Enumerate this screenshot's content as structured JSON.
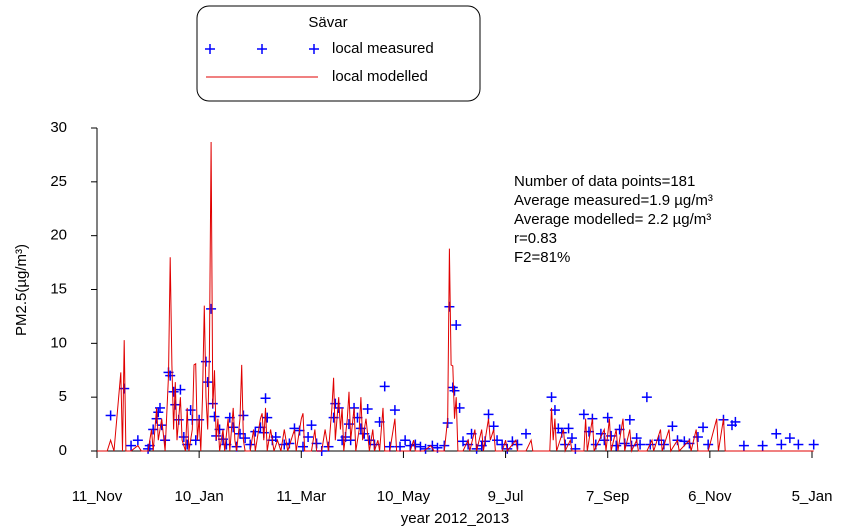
{
  "chart_data": {
    "type": "line",
    "legend_title": "Sävar",
    "x_label": "year 2012_2013",
    "y_label": "PM2.5(µg/m³)",
    "annotations": [
      "Number of data points=181",
      "Average measured=1.9 µg/m³",
      "Average modelled= 2.2 µg/m³",
      "r=0.83",
      "F2=81%"
    ],
    "xlim": [
      0,
      420
    ],
    "xticks": [
      {
        "value": 0,
        "label": "11_Nov"
      },
      {
        "value": 60,
        "label": "10_Jan"
      },
      {
        "value": 120,
        "label": "11_Mar"
      },
      {
        "value": 180,
        "label": "10_May"
      },
      {
        "value": 240,
        "label": "9_Jul"
      },
      {
        "value": 300,
        "label": "7_Sep"
      },
      {
        "value": 360,
        "label": "6_Nov"
      },
      {
        "value": 420,
        "label": "5_Jan"
      }
    ],
    "ylim": [
      0,
      30
    ],
    "yticks": [
      0,
      5,
      10,
      15,
      20,
      25,
      30
    ],
    "series": [
      {
        "name": "local measured",
        "color": "#0000ff",
        "marker": "+",
        "x": [
          8,
          16,
          20,
          24,
          30,
          31,
          33,
          35,
          36,
          37,
          38,
          40,
          42,
          43,
          45,
          46,
          48,
          49,
          51,
          53,
          55,
          56,
          58,
          60,
          64,
          65,
          67,
          68,
          69,
          70,
          72,
          74,
          76,
          78,
          80,
          82,
          84,
          86,
          87,
          90,
          93,
          96,
          98,
          99,
          100,
          103,
          105,
          110,
          113,
          116,
          119,
          121,
          124,
          126,
          129,
          132,
          136,
          139,
          140,
          142,
          144,
          146,
          148,
          149,
          151,
          153,
          155,
          157,
          159,
          160,
          163,
          166,
          169,
          172,
          175,
          178,
          181,
          184,
          187,
          190,
          193,
          197,
          200,
          204,
          206,
          207,
          209,
          210,
          211,
          213,
          215,
          218,
          220,
          223,
          226,
          228,
          230,
          233,
          235,
          238,
          241,
          244,
          247,
          252,
          267,
          269,
          271,
          273,
          275,
          277,
          279,
          281,
          286,
          289,
          291,
          293,
          296,
          298,
          300,
          302,
          305,
          307,
          310,
          313,
          314,
          317,
          319,
          323,
          325,
          330,
          333,
          338,
          341,
          345,
          348,
          353,
          356,
          359,
          368,
          373,
          375,
          380,
          391,
          399,
          402,
          407,
          412,
          421
        ],
        "values": [
          3.3,
          5.8,
          0.5,
          1.0,
          0.2,
          0.5,
          2.0,
          3.0,
          3.6,
          4.0,
          2.4,
          1.0,
          7.3,
          7.0,
          5.5,
          4.3,
          2.9,
          5.7,
          1.3,
          0.6,
          3.8,
          2.9,
          1.0,
          2.9,
          8.3,
          6.4,
          13.2,
          4.4,
          3.2,
          1.4,
          2.0,
          1.1,
          0.6,
          3.1,
          2.2,
          0.4,
          1.6,
          3.3,
          1.2,
          0.6,
          1.8,
          2.2,
          1.7,
          4.9,
          3.1,
          1.0,
          1.3,
          0.6,
          0.7,
          2.1,
          1.9,
          0.4,
          1.3,
          2.4,
          0.7,
          0.0,
          0.4,
          3.1,
          4.4,
          4.0,
          1.0,
          1.3,
          2.5,
          1.0,
          4.0,
          3.1,
          2.1,
          1.6,
          3.9,
          1.0,
          0.6,
          2.7,
          6.0,
          0.4,
          3.8,
          0.4,
          1.0,
          0.5,
          0.6,
          0.4,
          0.2,
          0.5,
          0.3,
          0.5,
          2.6,
          13.4,
          5.9,
          5.6,
          11.7,
          4.0,
          0.9,
          0.6,
          1.6,
          0.2,
          0.5,
          0.9,
          3.4,
          2.3,
          1.0,
          0.6,
          0.2,
          0.9,
          0.6,
          1.6,
          5.0,
          3.8,
          2.1,
          1.7,
          0.6,
          2.1,
          1.2,
          0.2,
          3.4,
          1.8,
          3.0,
          0.6,
          1.6,
          1.0,
          3.1,
          1.4,
          0.5,
          2.0,
          0.7,
          2.9,
          0.5,
          1.2,
          0.6,
          5.0,
          0.6,
          1.0,
          0.6,
          2.3,
          1.0,
          0.9,
          0.7,
          1.3,
          2.2,
          0.6,
          2.9,
          2.4,
          2.7,
          0.5,
          0.5,
          1.6,
          0.6,
          1.2,
          0.6,
          0.6
        ]
      },
      {
        "name": "local modelled",
        "color": "#e00000",
        "marker": "line",
        "x": [
          0,
          6,
          8,
          10,
          14,
          15,
          16,
          17,
          20,
          24,
          26,
          30,
          32,
          33,
          35,
          36,
          38,
          40,
          42,
          43,
          44,
          45,
          46,
          47,
          48,
          49,
          50,
          52,
          53,
          54,
          56,
          57,
          58,
          59,
          60,
          61,
          62,
          63,
          64,
          65,
          66,
          67,
          68,
          69,
          70,
          71,
          72,
          74,
          75,
          77,
          78,
          80,
          81,
          82,
          84,
          85,
          86,
          87,
          90,
          92,
          93,
          96,
          97,
          98,
          99,
          100,
          102,
          104,
          106,
          108,
          110,
          112,
          116,
          117,
          120,
          121,
          122,
          126,
          128,
          129,
          132,
          134,
          136,
          138,
          139,
          140,
          142,
          143,
          144,
          145,
          147,
          148,
          149,
          151,
          152,
          154,
          155,
          156,
          158,
          160,
          162,
          163,
          165,
          166,
          168,
          169,
          172,
          175,
          176,
          180,
          184,
          186,
          187,
          192,
          196,
          198,
          204,
          206,
          207,
          208,
          209,
          210,
          211,
          212,
          215,
          218,
          219,
          222,
          223,
          226,
          227,
          230,
          231,
          233,
          234,
          238,
          240,
          241,
          246,
          247,
          252,
          255,
          256,
          260,
          266,
          267,
          268,
          269,
          270,
          274,
          275,
          278,
          279,
          286,
          287,
          288,
          291,
          292,
          298,
          299,
          301,
          302,
          305,
          306,
          309,
          310,
          313,
          314,
          317,
          318,
          323,
          326,
          327,
          331,
          332,
          336,
          337,
          341,
          342,
          348,
          349,
          352,
          353,
          359,
          364,
          365,
          368,
          369,
          375,
          400,
          421
        ],
        "values": [
          0,
          0,
          1,
          0,
          7.3,
          0,
          10.3,
          0,
          0,
          0.5,
          0,
          0,
          2,
          0,
          4,
          1,
          3,
          0,
          7,
          18,
          8,
          2,
          6.4,
          1,
          3,
          5,
          1,
          0,
          4,
          0,
          2,
          8,
          8.1,
          1,
          3,
          0,
          5,
          13.5,
          5,
          2,
          9,
          28.7,
          4,
          7.5,
          1,
          3,
          0,
          2,
          0,
          3,
          0,
          4,
          1,
          0,
          3,
          8,
          1,
          0,
          0,
          2,
          0,
          3,
          3.5,
          1,
          4,
          0,
          2,
          0,
          1,
          0,
          2,
          0,
          2,
          0,
          3,
          3.5,
          0,
          0,
          2,
          0,
          0,
          2,
          0,
          4,
          6.8,
          1,
          5,
          2,
          4,
          0,
          3,
          5.5,
          1,
          4,
          0,
          2,
          5,
          1,
          3,
          0,
          2,
          0,
          1,
          0,
          4,
          0,
          0,
          3,
          0,
          0,
          0,
          1,
          0,
          0,
          0.5,
          0,
          0,
          3,
          18.8,
          8,
          7.9,
          3,
          5,
          0,
          0,
          1,
          0,
          2,
          0,
          2,
          0,
          3,
          1,
          2,
          0,
          0,
          1,
          0,
          1,
          0,
          0,
          1,
          0,
          0,
          0,
          4,
          1,
          3,
          0,
          2,
          0,
          1,
          0,
          0,
          3,
          0,
          3,
          0,
          2,
          0,
          3,
          0,
          2,
          0,
          3,
          0,
          2,
          0,
          1,
          0,
          0,
          1,
          0,
          2,
          0,
          2,
          0,
          1,
          0,
          1,
          0,
          2,
          0,
          0,
          3,
          0,
          3,
          0,
          0,
          0,
          0
        ]
      }
    ]
  }
}
